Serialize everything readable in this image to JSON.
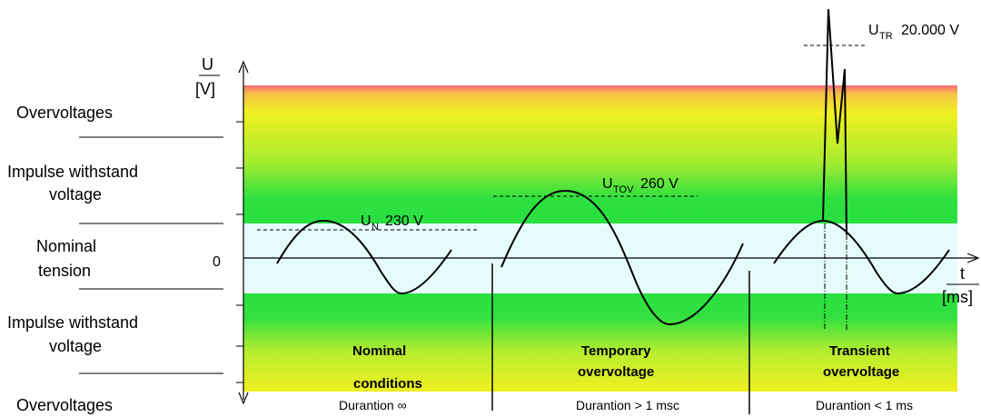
{
  "left_labels": {
    "overvoltages_top": "Overvoltages",
    "impulse_top_line1": "Impulse withstand",
    "impulse_top_line2": "voltage",
    "nominal_line1": "Nominal",
    "nominal_line2": "tension",
    "impulse_bottom_line1": "Impulse withstand",
    "impulse_bottom_line2": "voltage",
    "overvoltages_bottom": "Overvoltages"
  },
  "axes": {
    "y_label_top": "U",
    "y_label_bottom": "[V]",
    "x_label_top": "t",
    "x_label_bottom": "[ms]",
    "zero": "0"
  },
  "annotations": {
    "un_main": "U",
    "un_sub": "N",
    "un_value": "230 V",
    "utov_main": "U",
    "utov_sub": "TOV",
    "utov_value": "260 V",
    "utr_main": "U",
    "utr_sub": "TR",
    "utr_value": "20.000  V"
  },
  "sections": {
    "nominal_line1": "Nominal",
    "nominal_line2": "conditions",
    "nominal_duration": "Durantion  ∞",
    "temporary_line1": "Temporary",
    "temporary_line2": "overvoltage",
    "temporary_duration": "Durantion > 1 msc",
    "transient_line1": "Transient",
    "transient_line2": "overvoltage",
    "transient_duration": "Durantion  < 1 ms"
  },
  "colors": {
    "red_top": "#f56a7a",
    "yellow": "#f0f020",
    "green": "#28e040",
    "nominal_band": "#e6fbfb",
    "ink": "#000000"
  }
}
